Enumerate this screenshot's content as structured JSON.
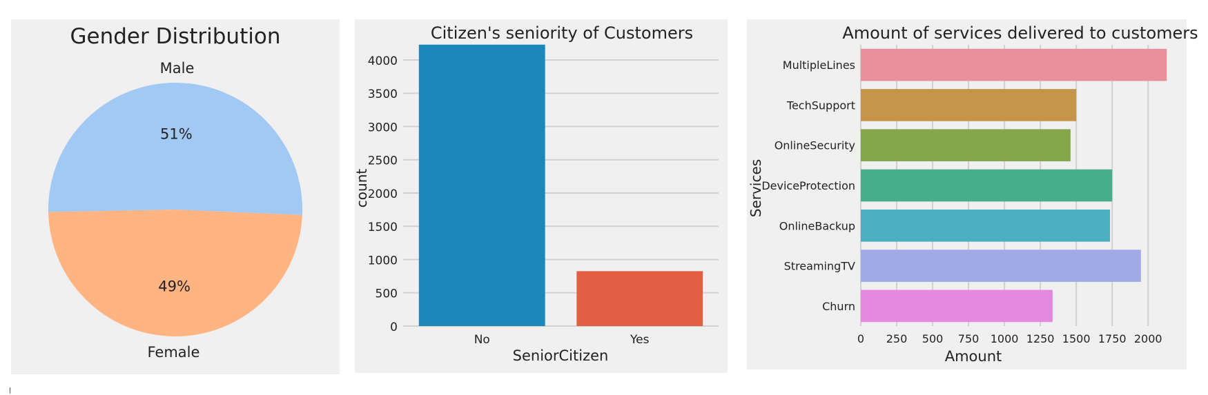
{
  "chart_data": [
    {
      "type": "pie",
      "title": "Gender Distribution",
      "labels": [
        "Male",
        "Female"
      ],
      "values": [
        51,
        49
      ],
      "pct_labels": [
        "51%",
        "49%"
      ],
      "colors": [
        "#a1c9f4",
        "#ffb482"
      ]
    },
    {
      "type": "bar",
      "title": "Citizen's seniority of Customers",
      "xlabel": "SeniorCitizen",
      "ylabel": "count",
      "categories": [
        "No",
        "Yes"
      ],
      "values": [
        4230,
        825
      ],
      "colors": [
        "#1b87bb",
        "#e45e45"
      ],
      "ylim": [
        0,
        4300
      ],
      "yticks": [
        0,
        500,
        1000,
        1500,
        2000,
        2500,
        3000,
        3500,
        4000
      ],
      "grid": true
    },
    {
      "type": "bar",
      "orientation": "horizontal",
      "title": "Amount of services delivered to customers",
      "xlabel": "Amount",
      "ylabel": "Services",
      "categories": [
        "MultipleLines",
        "TechSupport",
        "OnlineSecurity",
        "DeviceProtection",
        "OnlineBackup",
        "StreamingTV",
        "Churn"
      ],
      "values": [
        2130,
        1500,
        1460,
        1750,
        1735,
        1950,
        1335
      ],
      "colors": [
        "#e8919c",
        "#c5964a",
        "#84a74b",
        "#46ae8b",
        "#4baec1",
        "#a0aae7",
        "#e589e0"
      ],
      "xlim": [
        0,
        2220
      ],
      "xticks": [
        0,
        250,
        500,
        750,
        1000,
        1250,
        1500,
        1750,
        2000
      ],
      "grid": true
    }
  ]
}
